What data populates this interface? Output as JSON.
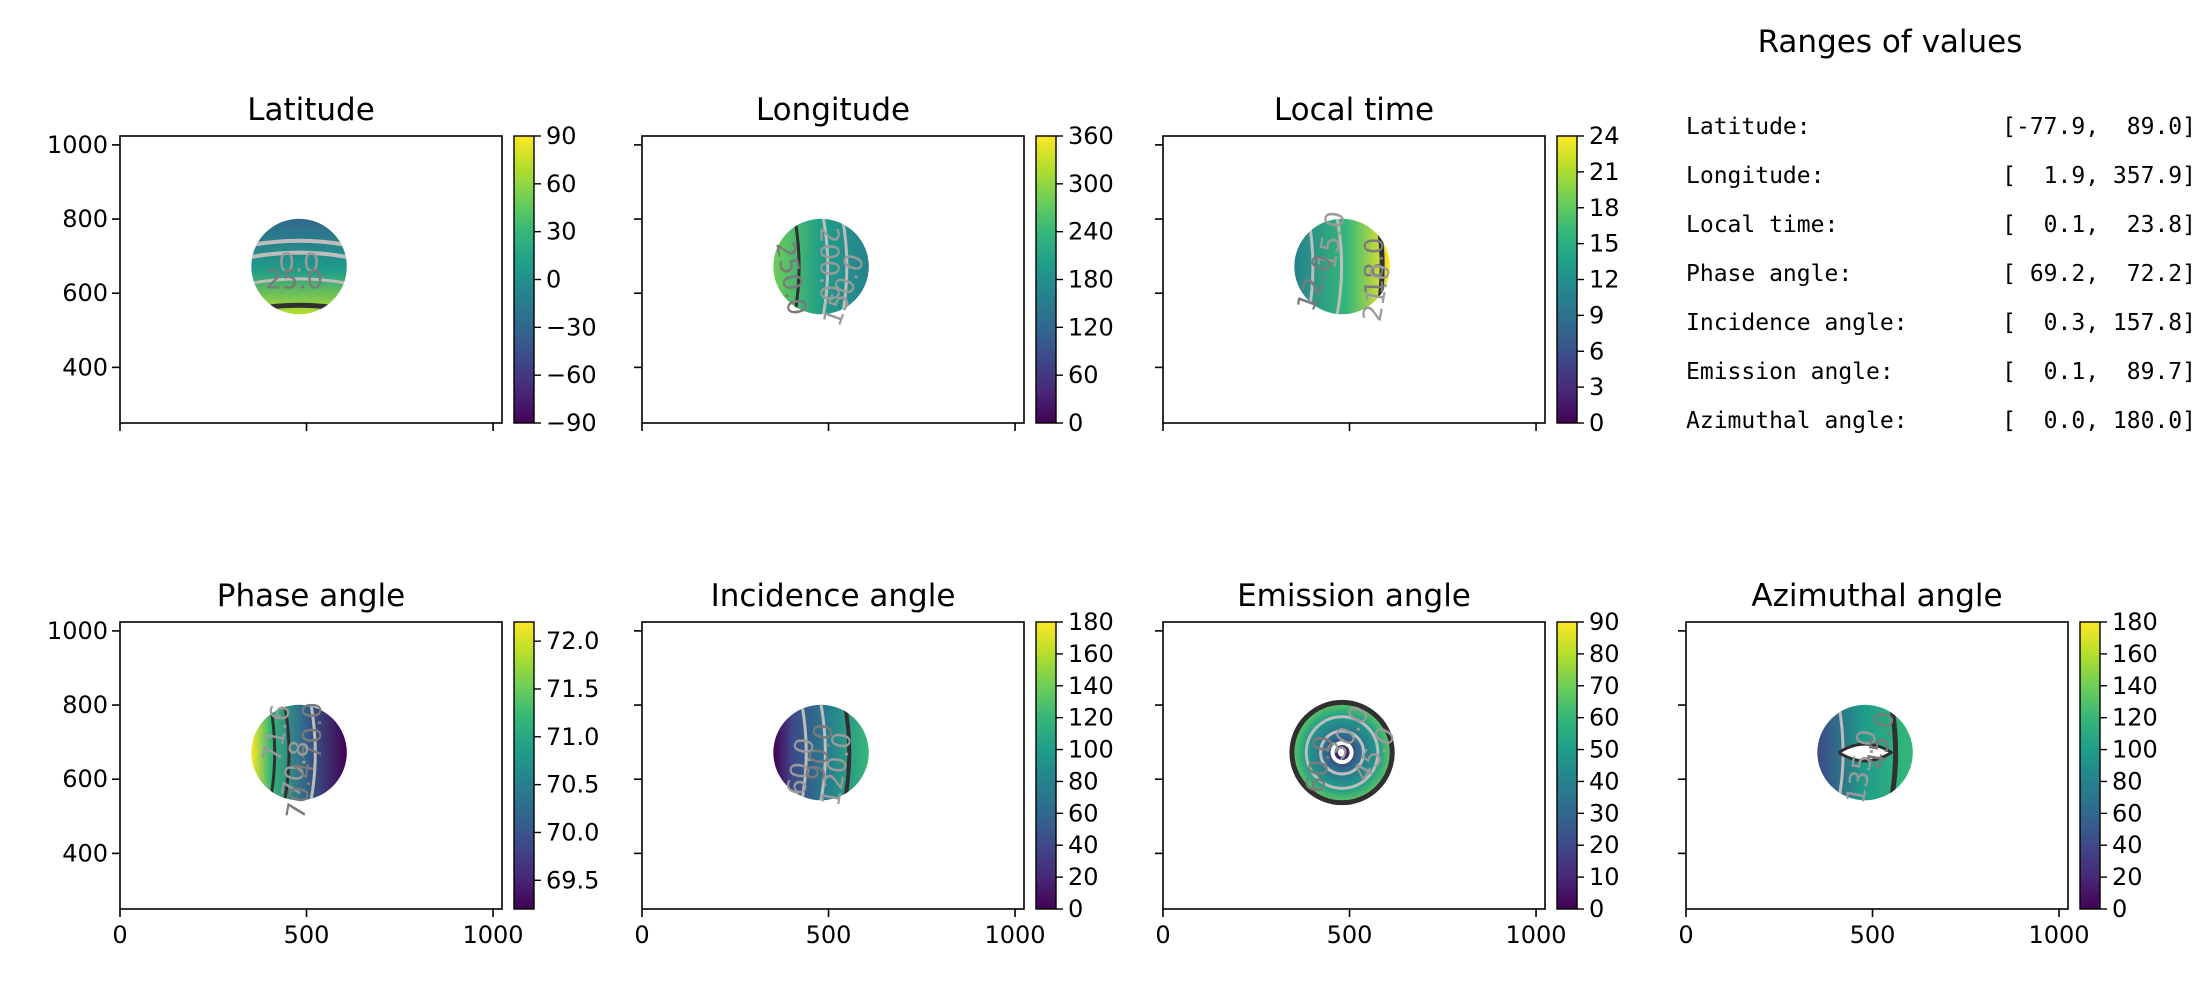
{
  "chart_data": [
    {
      "type": "heatmap",
      "title": "Latitude",
      "xlim": [
        0,
        1024
      ],
      "ylim": [
        250,
        1024
      ],
      "xticks": [
        0,
        500,
        1000
      ],
      "yticks": [
        400,
        600,
        800,
        1000
      ],
      "show_xticklabels": false,
      "show_yticklabels": true,
      "colorbar": {
        "range": [
          -90,
          90
        ],
        "ticks": [
          "90",
          "60",
          "30",
          "0",
          "−30",
          "−60",
          "−90"
        ]
      },
      "contour_labels": [
        "0.0",
        "25.0"
      ]
    },
    {
      "type": "heatmap",
      "title": "Longitude",
      "xlim": [
        0,
        1024
      ],
      "ylim": [
        250,
        1024
      ],
      "xticks": [
        0,
        500,
        1000
      ],
      "yticks": [
        400,
        600,
        800,
        1000
      ],
      "show_xticklabels": false,
      "show_yticklabels": false,
      "colorbar": {
        "range": [
          0,
          360
        ],
        "ticks": [
          "360",
          "300",
          "240",
          "180",
          "120",
          "60",
          "0"
        ]
      },
      "contour_labels": [
        "200.0",
        "250.0",
        "150.0"
      ]
    },
    {
      "type": "heatmap",
      "title": "Local time",
      "xlim": [
        0,
        1024
      ],
      "ylim": [
        250,
        1024
      ],
      "xticks": [
        0,
        500,
        1000
      ],
      "yticks": [
        400,
        600,
        800,
        1000
      ],
      "show_xticklabels": false,
      "show_yticklabels": false,
      "colorbar": {
        "range": [
          0,
          24
        ],
        "ticks": [
          "24",
          "21",
          "18",
          "15",
          "12",
          "9",
          "6",
          "3",
          "0"
        ]
      },
      "contour_labels": [
        "15.0",
        "18.0",
        "21.0",
        "12.0"
      ]
    },
    {
      "type": "heatmap",
      "title": "Phase angle",
      "xlim": [
        0,
        1024
      ],
      "ylim": [
        250,
        1024
      ],
      "xticks": [
        0,
        500,
        1000
      ],
      "yticks": [
        400,
        600,
        800,
        1000
      ],
      "show_xticklabels": true,
      "show_yticklabels": true,
      "colorbar": {
        "range": [
          69.2,
          72.2
        ],
        "ticks": [
          "72.0",
          "71.5",
          "71.0",
          "70.5",
          "70.0",
          "69.5"
        ]
      },
      "contour_labels": [
        "71.6",
        "70.0",
        "70.8",
        "70.4"
      ]
    },
    {
      "type": "heatmap",
      "title": "Incidence angle",
      "xlim": [
        0,
        1024
      ],
      "ylim": [
        250,
        1024
      ],
      "xticks": [
        0,
        500,
        1000
      ],
      "yticks": [
        400,
        600,
        800,
        1000
      ],
      "show_xticklabels": true,
      "show_yticklabels": false,
      "colorbar": {
        "range": [
          0,
          180
        ],
        "ticks": [
          "180",
          "160",
          "140",
          "120",
          "100",
          "80",
          "60",
          "40",
          "20",
          "0"
        ]
      },
      "contour_labels": [
        "60.0",
        "90.0",
        "120.0"
      ]
    },
    {
      "type": "heatmap",
      "title": "Emission angle",
      "xlim": [
        0,
        1024
      ],
      "ylim": [
        250,
        1024
      ],
      "xticks": [
        0,
        500,
        1000
      ],
      "yticks": [
        400,
        600,
        800,
        1000
      ],
      "show_xticklabels": true,
      "show_yticklabels": false,
      "colorbar": {
        "range": [
          0,
          90
        ],
        "ticks": [
          "90",
          "80",
          "70",
          "60",
          "50",
          "40",
          "30",
          "20",
          "10",
          "0"
        ]
      },
      "contour_labels": [
        "30.0",
        "60.0",
        "45.0"
      ]
    },
    {
      "type": "heatmap",
      "title": "Azimuthal angle",
      "xlim": [
        0,
        1024
      ],
      "ylim": [
        250,
        1024
      ],
      "xticks": [
        0,
        500,
        1000
      ],
      "yticks": [
        400,
        600,
        800,
        1000
      ],
      "show_xticklabels": true,
      "show_yticklabels": false,
      "colorbar": {
        "range": [
          0,
          180
        ],
        "ticks": [
          "180",
          "160",
          "140",
          "120",
          "100",
          "80",
          "60",
          "40",
          "20",
          "0"
        ]
      },
      "contour_labels": [
        "135.0",
        "45.0"
      ]
    }
  ],
  "ranges": {
    "title": "Ranges of values",
    "rows": [
      {
        "label": "Latitude:",
        "value": "[-77.9,  89.0]"
      },
      {
        "label": "Longitude:",
        "value": "[  1.9, 357.9]"
      },
      {
        "label": "Local time:",
        "value": "[  0.1,  23.8]"
      },
      {
        "label": "Phase angle:",
        "value": "[ 69.2,  72.2]"
      },
      {
        "label": "Incidence angle:",
        "value": "[  0.3, 157.8]"
      },
      {
        "label": "Emission angle:",
        "value": "[  0.1,  89.7]"
      },
      {
        "label": "Azimuthal angle:",
        "value": "[  0.0, 180.0]"
      }
    ]
  },
  "colors": {
    "viridis": [
      "#440154",
      "#482878",
      "#3e4989",
      "#31688e",
      "#26828e",
      "#1f9e89",
      "#35b779",
      "#6ece58",
      "#b5de2b",
      "#fde725"
    ],
    "contour_light": "#bdbdbd",
    "contour_dark": "#303030",
    "axis": "#000000"
  }
}
